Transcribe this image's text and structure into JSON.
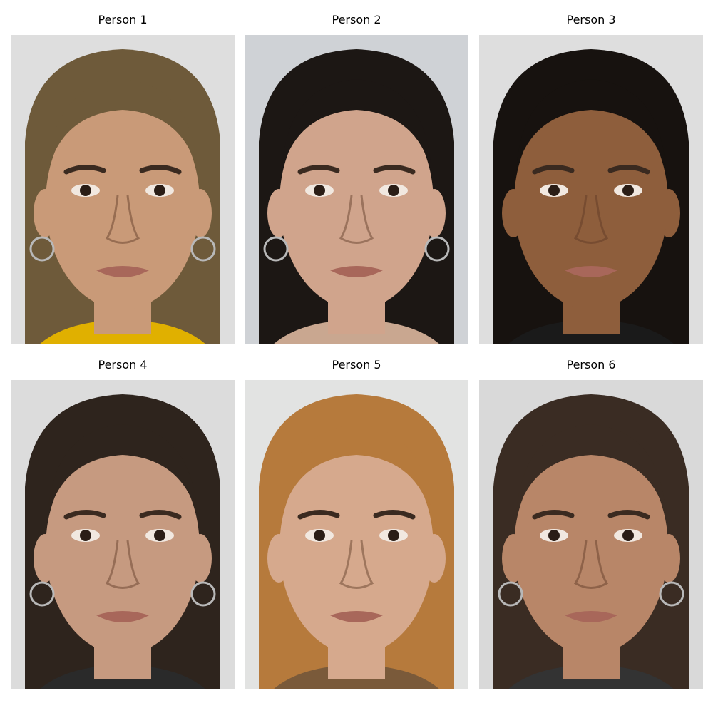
{
  "figure": {
    "panels": [
      {
        "title": "Person 1",
        "hair": "#6e5a3a",
        "skin": "#c99a78",
        "bg": "#dedede",
        "earrings": true,
        "shirt": "#e0b000"
      },
      {
        "title": "Person 2",
        "hair": "#1c1714",
        "skin": "#d0a48c",
        "bg": "#cfd2d6",
        "earrings": true,
        "shirt": "#c9a790"
      },
      {
        "title": "Person 3",
        "hair": "#17120f",
        "skin": "#8e5e3c",
        "bg": "#dedede",
        "earrings": false,
        "shirt": "#1a1a1a"
      },
      {
        "title": "Person 4",
        "hair": "#2e241d",
        "skin": "#c69a80",
        "bg": "#dcdcdc",
        "earrings": true,
        "shirt": "#2a2a2a"
      },
      {
        "title": "Person 5",
        "hair": "#b67a3c",
        "skin": "#d6a98d",
        "bg": "#e2e3e2",
        "earrings": false,
        "shirt": "#7a5a3a"
      },
      {
        "title": "Person 6",
        "hair": "#3a2c23",
        "skin": "#b88668",
        "bg": "#d9d9d9",
        "earrings": true,
        "shirt": "#333333"
      }
    ]
  }
}
